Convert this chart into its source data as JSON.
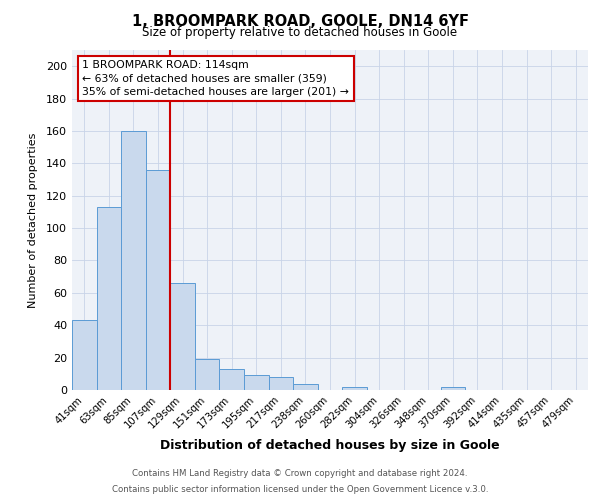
{
  "title_line1": "1, BROOMPARK ROAD, GOOLE, DN14 6YF",
  "title_line2": "Size of property relative to detached houses in Goole",
  "xlabel": "Distribution of detached houses by size in Goole",
  "ylabel": "Number of detached properties",
  "bar_labels": [
    "41sqm",
    "63sqm",
    "85sqm",
    "107sqm",
    "129sqm",
    "151sqm",
    "173sqm",
    "195sqm",
    "217sqm",
    "238sqm",
    "260sqm",
    "282sqm",
    "304sqm",
    "326sqm",
    "348sqm",
    "370sqm",
    "392sqm",
    "414sqm",
    "435sqm",
    "457sqm",
    "479sqm"
  ],
  "bar_values": [
    43,
    113,
    160,
    136,
    66,
    19,
    13,
    9,
    8,
    4,
    0,
    2,
    0,
    0,
    0,
    2,
    0,
    0,
    0,
    0,
    0
  ],
  "bar_color": "#c9d9ed",
  "bar_edge_color": "#5b9bd5",
  "property_line_color": "#cc0000",
  "property_line_x": 3.5,
  "annotation_title": "1 BROOMPARK ROAD: 114sqm",
  "annotation_line1": "← 63% of detached houses are smaller (359)",
  "annotation_line2": "35% of semi-detached houses are larger (201) →",
  "annotation_box_edge": "#cc0000",
  "ylim": [
    0,
    210
  ],
  "yticks": [
    0,
    20,
    40,
    60,
    80,
    100,
    120,
    140,
    160,
    180,
    200
  ],
  "footer_line1": "Contains HM Land Registry data © Crown copyright and database right 2024.",
  "footer_line2": "Contains public sector information licensed under the Open Government Licence v.3.0.",
  "background_color": "#eef2f8",
  "grid_color": "#c8d4e8",
  "fig_bg_color": "#ffffff"
}
